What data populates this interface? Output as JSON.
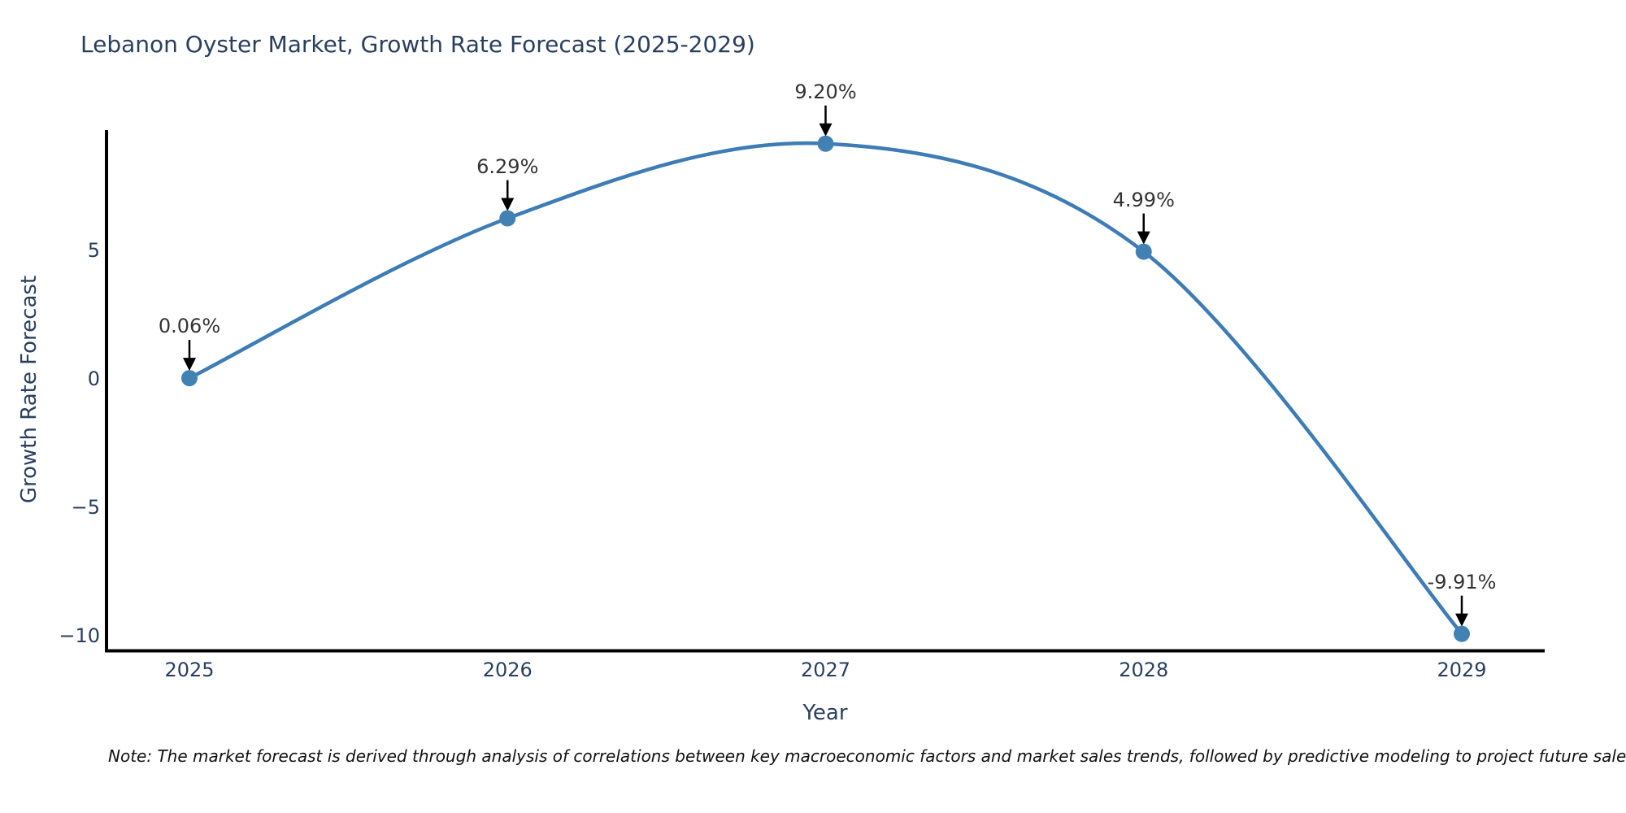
{
  "chart": {
    "title": "Lebanon Oyster Market, Growth Rate Forecast (2025-2029)",
    "xlabel": "Year",
    "ylabel": "Growth Rate Forecast",
    "note": "Note: The market forecast is derived through analysis of correlations between key macroeconomic factors and market sales trends, followed by predictive modeling to project future sales",
    "colors": {
      "line": "#3e7cb5",
      "marker": "#4181b4",
      "spine": "#000000",
      "arrow": "#000000",
      "title_text": "#2a3f5f",
      "axis_text": "#2a3f5f",
      "annotation_text": "#333333",
      "note_text": "#111111",
      "background": "#ffffff"
    }
  },
  "chart_data": {
    "type": "line",
    "title": "Lebanon Oyster Market, Growth Rate Forecast (2025-2029)",
    "xlabel": "Year",
    "ylabel": "Growth Rate Forecast",
    "x": [
      "2025",
      "2026",
      "2027",
      "2028",
      "2029"
    ],
    "values": [
      0.06,
      6.29,
      9.2,
      4.99,
      -9.91
    ],
    "point_labels": [
      "0.06%",
      "6.29%",
      "9.20%",
      "4.99%",
      "-9.91%"
    ],
    "yticks": {
      "values": [
        5,
        0,
        -5,
        -10
      ],
      "labels": [
        "5",
        "0",
        "−5",
        "−10"
      ]
    },
    "ylim": [
      -10.6,
      9.9
    ],
    "grid": false,
    "legend": false,
    "line_shape": "spline",
    "marker": "circle",
    "annotation_arrows": "black arrows pointing down to each data point"
  }
}
